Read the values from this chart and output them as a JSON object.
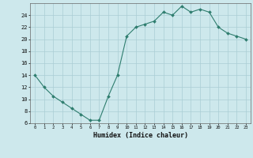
{
  "x": [
    0,
    1,
    2,
    3,
    4,
    5,
    6,
    7,
    8,
    9,
    10,
    11,
    12,
    13,
    14,
    15,
    16,
    17,
    18,
    19,
    20,
    21,
    22,
    23
  ],
  "y": [
    14,
    12,
    10.5,
    9.5,
    8.5,
    7.5,
    6.5,
    6.5,
    10.5,
    14,
    20.5,
    22,
    22.5,
    23,
    24.5,
    24,
    25.5,
    24.5,
    25,
    24.5,
    22,
    21,
    20.5,
    20
  ],
  "line_color": "#2e7d6e",
  "bg_color": "#cde8ec",
  "grid_color": "#aacdd4",
  "xlabel": "Humidex (Indice chaleur)",
  "ylim": [
    6,
    26
  ],
  "xlim": [
    -0.5,
    23.5
  ],
  "yticks": [
    6,
    8,
    10,
    12,
    14,
    16,
    18,
    20,
    22,
    24
  ],
  "xticks": [
    0,
    1,
    2,
    3,
    4,
    5,
    6,
    7,
    8,
    9,
    10,
    11,
    12,
    13,
    14,
    15,
    16,
    17,
    18,
    19,
    20,
    21,
    22,
    23
  ]
}
